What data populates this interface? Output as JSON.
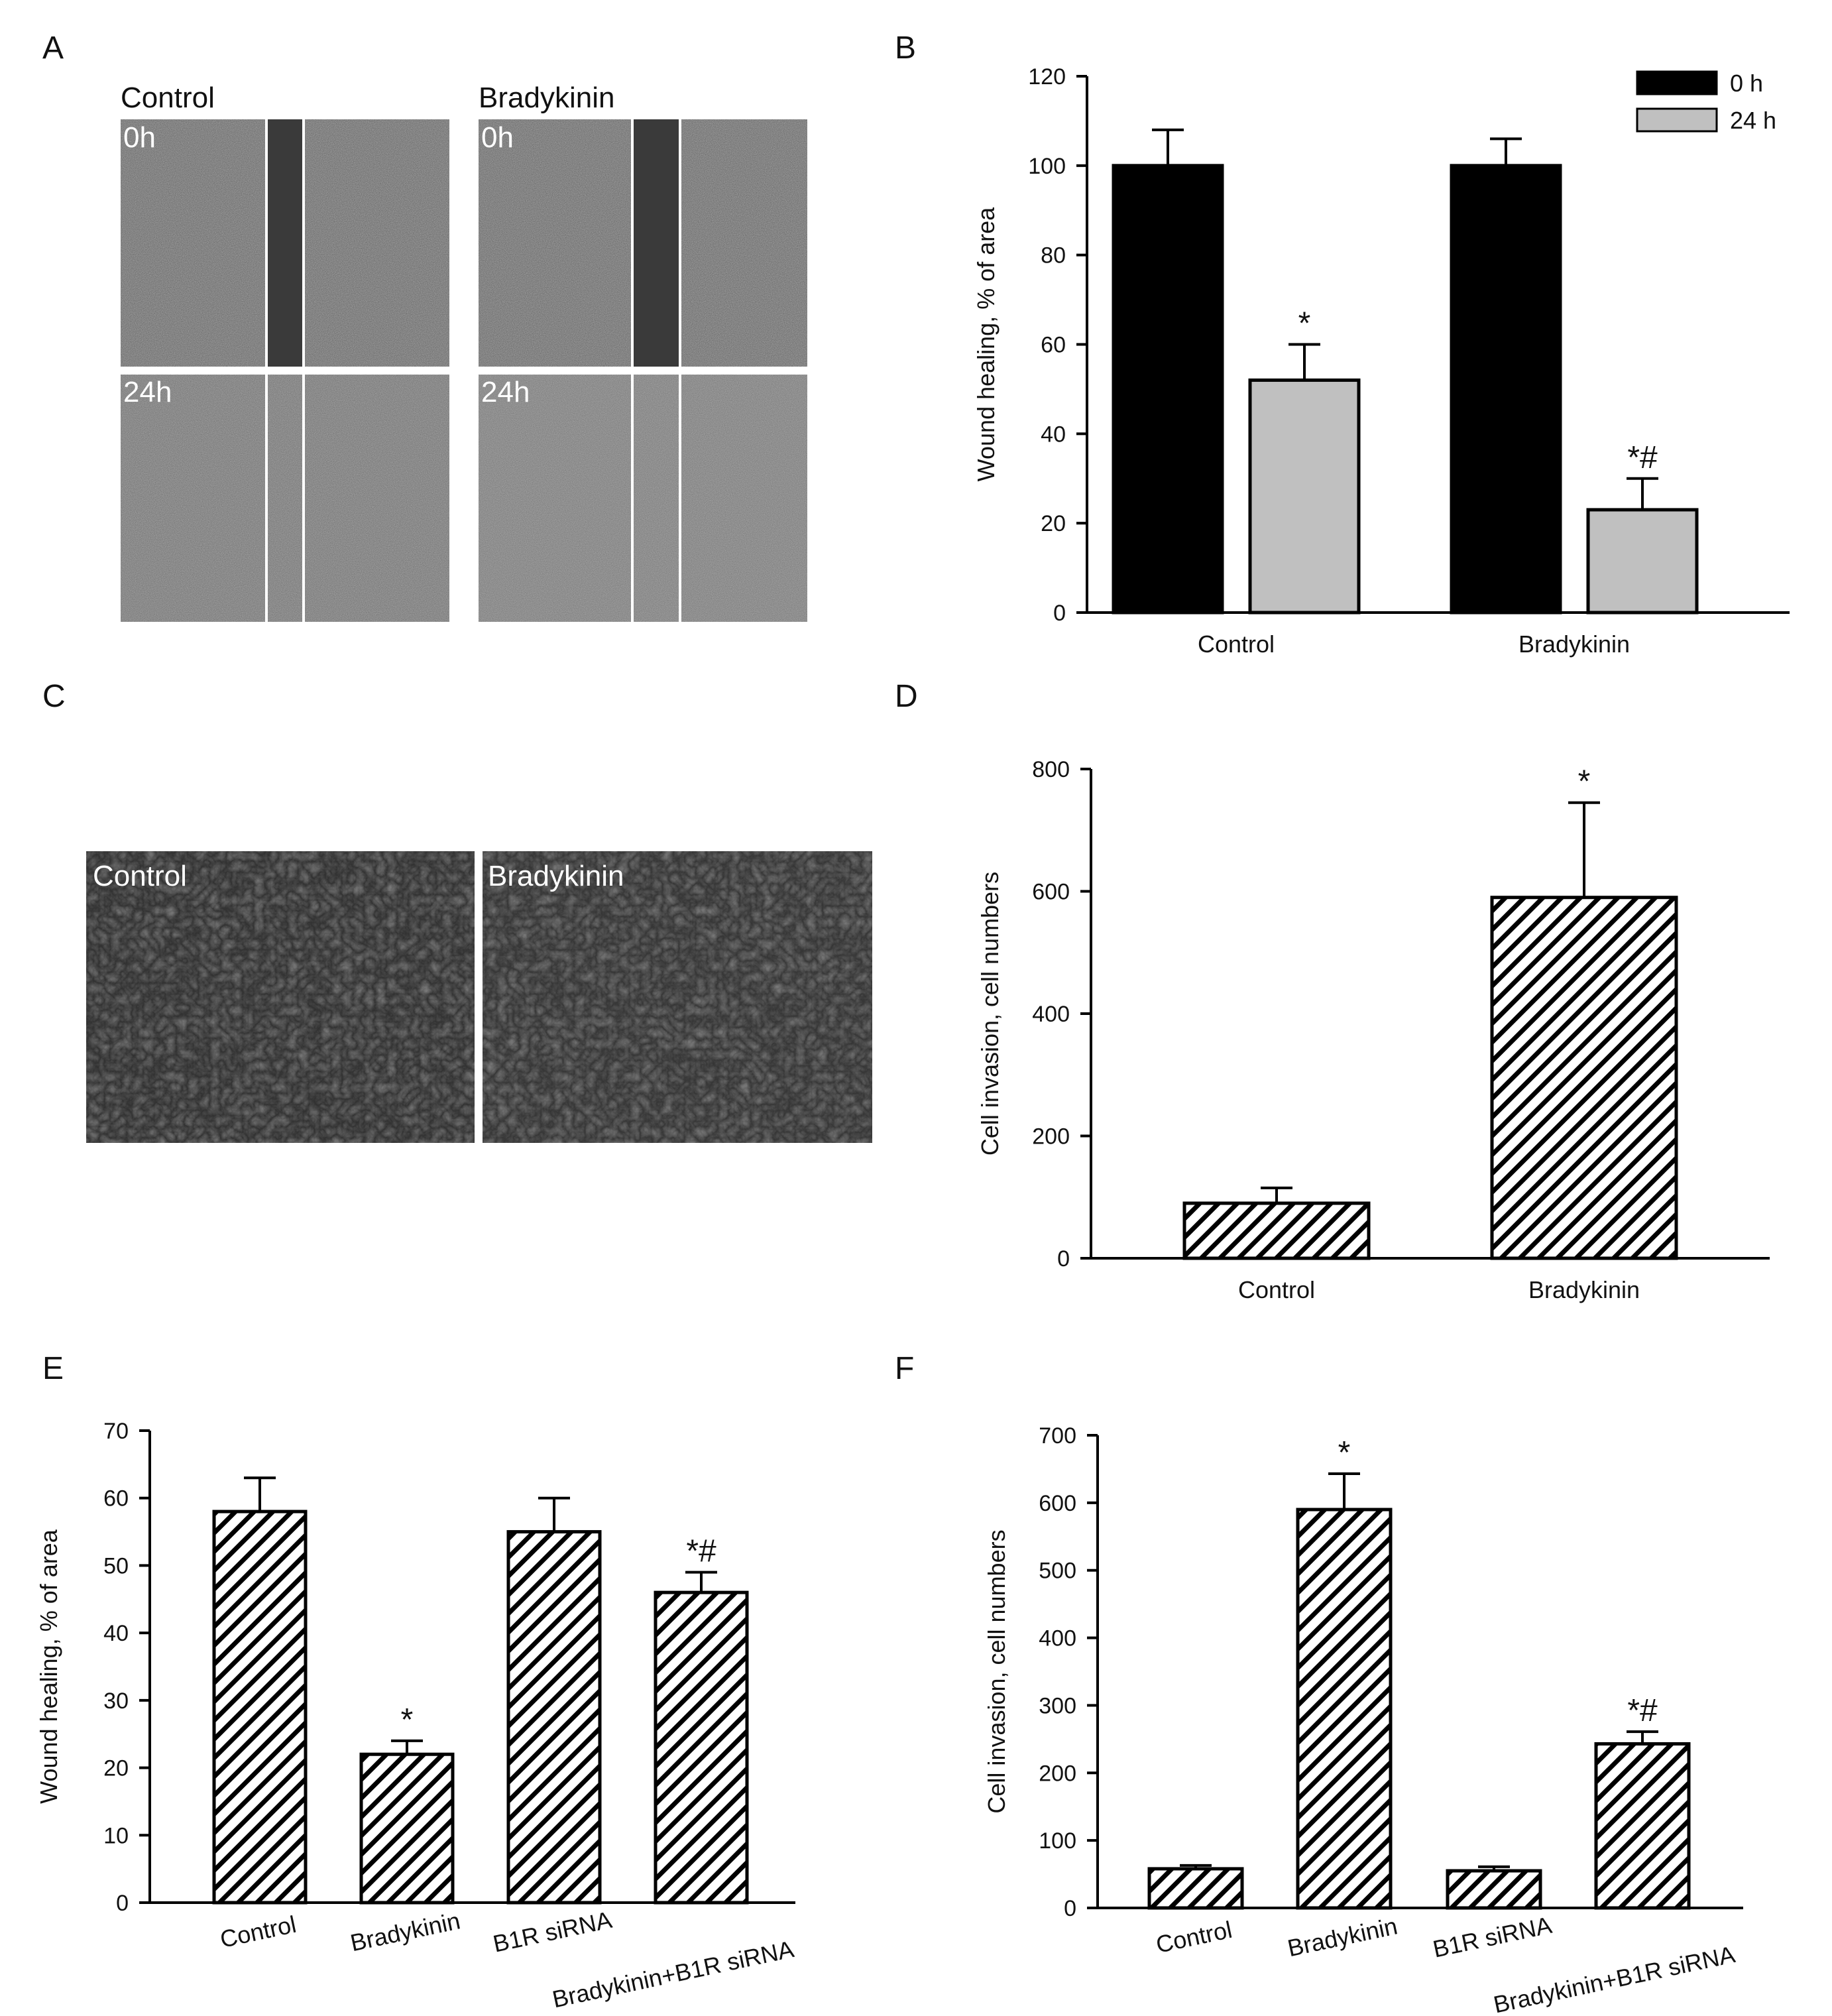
{
  "panels": {
    "A": {
      "letter": "A",
      "groups": [
        "Control",
        "Bradykinin"
      ],
      "times": [
        "0h",
        "24h"
      ]
    },
    "C": {
      "letter": "C",
      "groups": [
        "Control",
        "Bradykinin"
      ]
    }
  },
  "colors": {
    "bar_black": "#000000",
    "bar_gray": "#c0c0c0",
    "hatch": "#000000",
    "micrograph_dark": "#2b2b2b",
    "micrograph_light": "#7a7a7a"
  },
  "chart_data": [
    {
      "panel": "B",
      "type": "bar",
      "categories": [
        "Control",
        "Bradykinin"
      ],
      "series": [
        {
          "name": "0 h",
          "values": [
            100,
            100
          ],
          "errors": [
            8,
            6
          ],
          "fill": "#000000"
        },
        {
          "name": "24 h",
          "values": [
            52,
            23
          ],
          "errors": [
            8,
            7
          ],
          "fill": "#c0c0c0"
        }
      ],
      "annotations": [
        {
          "category": 0,
          "series": 1,
          "text": "*"
        },
        {
          "category": 1,
          "series": 1,
          "text": "*#"
        }
      ],
      "title": "",
      "xlabel": "",
      "ylabel": "Wound healing, % of area",
      "ylim": [
        0,
        120
      ],
      "yticks": [
        0,
        20,
        40,
        60,
        80,
        100,
        120
      ],
      "legend": "top-right",
      "grid": false
    },
    {
      "panel": "D",
      "type": "bar",
      "categories": [
        "Control",
        "Bradykinin"
      ],
      "series": [
        {
          "values": [
            90,
            590
          ],
          "errors": [
            25,
            155
          ],
          "fill": "hatch"
        }
      ],
      "annotations": [
        {
          "category": 1,
          "series": 0,
          "text": "*"
        }
      ],
      "title": "",
      "xlabel": "",
      "ylabel": "Cell invasion, cell numbers",
      "ylim": [
        0,
        800
      ],
      "yticks": [
        0,
        200,
        400,
        600,
        800
      ],
      "grid": false
    },
    {
      "panel": "E",
      "type": "bar",
      "categories": [
        "Control",
        "Bradykinin",
        "B1R siRNA",
        "Bradykinin+B1R siRNA"
      ],
      "series": [
        {
          "values": [
            58,
            22,
            55,
            46
          ],
          "errors": [
            5,
            2,
            5,
            3
          ],
          "fill": "hatch"
        }
      ],
      "annotations": [
        {
          "category": 1,
          "series": 0,
          "text": "*"
        },
        {
          "category": 3,
          "series": 0,
          "text": "*#"
        }
      ],
      "title": "",
      "xlabel": "",
      "ylabel": "Wound healing, % of area",
      "ylim": [
        0,
        70
      ],
      "yticks": [
        0,
        10,
        20,
        30,
        40,
        50,
        60,
        70
      ],
      "grid": false
    },
    {
      "panel": "F",
      "type": "bar",
      "categories": [
        "Control",
        "Bradykinin",
        "B1R siRNA",
        "Bradykinin+B1R siRNA"
      ],
      "series": [
        {
          "values": [
            58,
            590,
            55,
            243
          ],
          "errors": [
            5,
            53,
            6,
            18
          ],
          "fill": "hatch"
        }
      ],
      "annotations": [
        {
          "category": 1,
          "series": 0,
          "text": "*"
        },
        {
          "category": 3,
          "series": 0,
          "text": "*#"
        }
      ],
      "title": "",
      "xlabel": "",
      "ylabel": "Cell invasion, cell numbers",
      "ylim": [
        0,
        700
      ],
      "yticks": [
        0,
        100,
        200,
        300,
        400,
        500,
        600,
        700
      ],
      "grid": false
    }
  ]
}
